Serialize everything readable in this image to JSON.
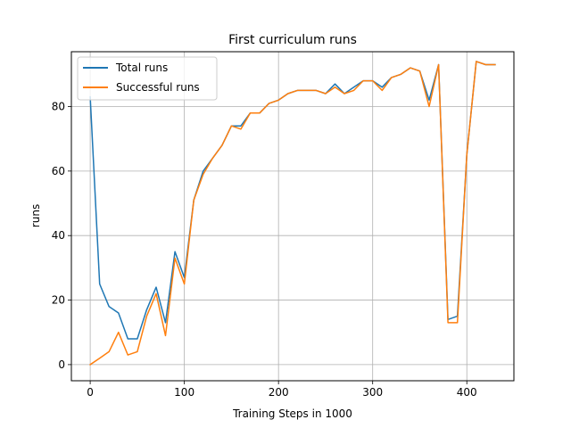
{
  "chart_data": {
    "type": "line",
    "title": "First curriculum runs",
    "xlabel": "Training Steps in 1000",
    "ylabel": "runs",
    "xlim": [
      -20,
      450
    ],
    "ylim": [
      -5,
      97
    ],
    "xticks": [
      0,
      100,
      200,
      300,
      400
    ],
    "yticks": [
      0,
      20,
      40,
      60,
      80
    ],
    "grid": true,
    "legend_position": "top-left",
    "x": [
      0,
      10,
      20,
      30,
      40,
      50,
      60,
      70,
      80,
      90,
      100,
      110,
      120,
      130,
      140,
      150,
      160,
      170,
      180,
      190,
      200,
      210,
      220,
      230,
      240,
      250,
      260,
      270,
      280,
      290,
      300,
      310,
      320,
      330,
      340,
      350,
      360,
      370,
      380,
      390,
      400,
      410,
      420,
      430
    ],
    "series": [
      {
        "name": "Total runs",
        "color": "#1f77b4",
        "values": [
          83,
          25,
          18,
          16,
          8,
          8,
          17,
          24,
          13,
          35,
          27,
          51,
          60,
          64,
          68,
          74,
          74,
          78,
          78,
          81,
          82,
          84,
          85,
          85,
          85,
          84,
          87,
          84,
          86,
          88,
          88,
          86,
          89,
          90,
          92,
          91,
          82,
          93,
          14,
          15,
          65,
          94,
          93,
          93
        ]
      },
      {
        "name": "Successful runs",
        "color": "#ff7f0e",
        "values": [
          0,
          2,
          4,
          10,
          3,
          4,
          15,
          22,
          9,
          33,
          25,
          51,
          59,
          64,
          68,
          74,
          73,
          78,
          78,
          81,
          82,
          84,
          85,
          85,
          85,
          84,
          86,
          84,
          85,
          88,
          88,
          85,
          89,
          90,
          92,
          91,
          80,
          93,
          13,
          13,
          65,
          94,
          93,
          93
        ]
      }
    ]
  }
}
